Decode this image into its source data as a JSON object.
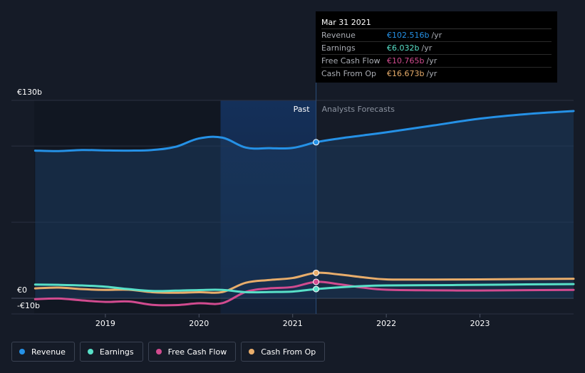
{
  "chart_data": {
    "type": "line",
    "currency_prefix": "€",
    "x_ticks": [
      "2019",
      "2020",
      "2021",
      "2022",
      "2023"
    ],
    "x_tick_values": [
      2019.0,
      2020.0,
      2021.0,
      2022.0,
      2023.0
    ],
    "xlim": [
      2018.24,
      2024.0
    ],
    "ylim": [
      -10,
      130
    ],
    "y_tick_labels": [
      {
        "label": "€130b",
        "value": 130
      },
      {
        "label": "€0",
        "value": 0
      },
      {
        "label": "-€10b",
        "value": -10
      }
    ],
    "gridlines": [
      130,
      100,
      50,
      0
    ],
    "past_label": "Past",
    "forecast_label": "Analysts Forecasts",
    "past_end": 2021.25,
    "past_highlight_start": 2020.23,
    "series": [
      {
        "name": "Revenue",
        "color": "#2591e6",
        "fill": true,
        "points": [
          [
            2018.25,
            97.0
          ],
          [
            2018.5,
            96.7
          ],
          [
            2018.75,
            97.4
          ],
          [
            2019.0,
            97.1
          ],
          [
            2019.25,
            97.0
          ],
          [
            2019.5,
            97.4
          ],
          [
            2019.75,
            99.5
          ],
          [
            2020.0,
            105.0
          ],
          [
            2020.25,
            105.5
          ],
          [
            2020.5,
            99.0
          ],
          [
            2020.75,
            98.6
          ],
          [
            2021.0,
            98.8
          ],
          [
            2021.25,
            102.516
          ],
          [
            2021.5,
            105.0
          ],
          [
            2021.75,
            107.0
          ],
          [
            2022.0,
            109.0
          ],
          [
            2022.5,
            113.5
          ],
          [
            2023.0,
            118.0
          ],
          [
            2023.5,
            121.0
          ],
          [
            2024.0,
            123.0
          ]
        ]
      },
      {
        "name": "Earnings",
        "color": "#58e0c8",
        "points": [
          [
            2018.25,
            9.0
          ],
          [
            2018.5,
            8.8
          ],
          [
            2018.75,
            8.4
          ],
          [
            2019.0,
            7.6
          ],
          [
            2019.25,
            6.0
          ],
          [
            2019.5,
            4.8
          ],
          [
            2019.75,
            5.0
          ],
          [
            2020.0,
            5.4
          ],
          [
            2020.25,
            5.5
          ],
          [
            2020.5,
            4.0
          ],
          [
            2020.75,
            4.1
          ],
          [
            2021.0,
            4.4
          ],
          [
            2021.25,
            6.032
          ],
          [
            2021.5,
            7.2
          ],
          [
            2021.75,
            8.0
          ],
          [
            2022.0,
            8.4
          ],
          [
            2022.5,
            8.6
          ],
          [
            2023.0,
            8.8
          ],
          [
            2023.5,
            9.1
          ],
          [
            2024.0,
            9.3
          ]
        ]
      },
      {
        "name": "Free Cash Flow",
        "color": "#d14b8f",
        "points": [
          [
            2018.25,
            -0.6
          ],
          [
            2018.5,
            -0.2
          ],
          [
            2018.75,
            -1.4
          ],
          [
            2019.0,
            -2.4
          ],
          [
            2019.25,
            -2.1
          ],
          [
            2019.5,
            -4.3
          ],
          [
            2019.75,
            -4.5
          ],
          [
            2020.0,
            -3.3
          ],
          [
            2020.25,
            -3.2
          ],
          [
            2020.5,
            4.2
          ],
          [
            2020.75,
            6.5
          ],
          [
            2021.0,
            7.4
          ],
          [
            2021.25,
            10.765
          ],
          [
            2021.5,
            9.2
          ],
          [
            2021.75,
            7.0
          ],
          [
            2022.0,
            5.6
          ],
          [
            2022.5,
            5.2
          ],
          [
            2023.0,
            5.1
          ],
          [
            2023.5,
            5.3
          ],
          [
            2024.0,
            5.5
          ]
        ]
      },
      {
        "name": "Cash From Op",
        "color": "#e8ad6b",
        "points": [
          [
            2018.25,
            6.5
          ],
          [
            2018.5,
            7.0
          ],
          [
            2018.75,
            6.0
          ],
          [
            2019.0,
            5.5
          ],
          [
            2019.25,
            5.6
          ],
          [
            2019.5,
            4.0
          ],
          [
            2019.75,
            3.6
          ],
          [
            2020.0,
            4.0
          ],
          [
            2020.25,
            4.1
          ],
          [
            2020.5,
            10.2
          ],
          [
            2020.75,
            12.0
          ],
          [
            2021.0,
            13.3
          ],
          [
            2021.25,
            16.673
          ],
          [
            2021.5,
            15.6
          ],
          [
            2021.75,
            13.8
          ],
          [
            2022.0,
            12.4
          ],
          [
            2022.5,
            12.3
          ],
          [
            2023.0,
            12.4
          ],
          [
            2023.5,
            12.6
          ],
          [
            2024.0,
            12.8
          ]
        ]
      }
    ]
  },
  "tooltip": {
    "date": "Mar 31 2021",
    "rows": [
      {
        "label": "Revenue",
        "value": "€102.516b",
        "unit": "/yr",
        "color": "#2591e6"
      },
      {
        "label": "Earnings",
        "value": "€6.032b",
        "unit": "/yr",
        "color": "#58e0c8"
      },
      {
        "label": "Free Cash Flow",
        "value": "€10.765b",
        "unit": "/yr",
        "color": "#d14b8f"
      },
      {
        "label": "Cash From Op",
        "value": "€16.673b",
        "unit": "/yr",
        "color": "#e8ad6b"
      }
    ]
  },
  "legend": [
    {
      "label": "Revenue",
      "color": "#2591e6"
    },
    {
      "label": "Earnings",
      "color": "#58e0c8"
    },
    {
      "label": "Free Cash Flow",
      "color": "#d14b8f"
    },
    {
      "label": "Cash From Op",
      "color": "#e8ad6b"
    }
  ]
}
